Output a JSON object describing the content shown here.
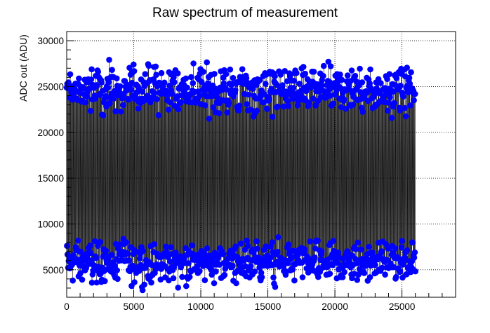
{
  "chart_data": {
    "type": "scatter",
    "title": "Raw spectrum of measurement",
    "xlabel": "",
    "ylabel": "ADC out (ADU)",
    "xlim": [
      0,
      29000
    ],
    "ylim": [
      2000,
      31000
    ],
    "x_ticks": [
      0,
      5000,
      10000,
      15000,
      20000,
      25000
    ],
    "y_ticks": [
      5000,
      10000,
      15000,
      20000,
      25000,
      30000
    ],
    "grid": true,
    "legend": "none",
    "series": [
      {
        "x_range": [
          0,
          26000
        ],
        "upper_band": [
          21000,
          28300
        ],
        "lower_band": [
          2600,
          9000
        ],
        "marker_color": "#0000ff",
        "connector_color": "#000000"
      }
    ]
  }
}
